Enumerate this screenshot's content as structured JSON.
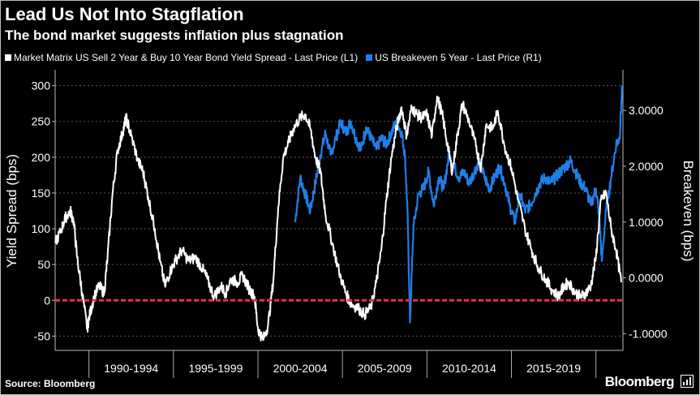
{
  "header": {
    "title": "Lead Us Not Into Stagflation",
    "subtitle": "The bond market suggests inflation plus stagnation"
  },
  "footer": {
    "source": "Source: Bloomberg",
    "brand": "Bloomberg"
  },
  "chart_data": {
    "type": "line",
    "title": "Lead Us Not Into Stagflation",
    "subtitle": "The bond market suggests inflation plus stagnation",
    "x_range": [
      1988.0,
      2021.6
    ],
    "x_category_boundaries": [
      1990,
      1995,
      2000,
      2005,
      2010,
      2015,
      2020
    ],
    "x_category_labels": [
      "1990-1994",
      "1995-1999",
      "2000-2004",
      "2005-2009",
      "2010-2014",
      "2015-2019"
    ],
    "left_axis": {
      "label": "Yield Spread (bps)",
      "range": [
        -70,
        320
      ],
      "ticks": [
        -50,
        0,
        50,
        100,
        150,
        200,
        250,
        300
      ]
    },
    "right_axis": {
      "label": "Breakeven (bps)",
      "range": [
        -1.3,
        3.7
      ],
      "ticks": [
        "-1.0000",
        "0.0000",
        "1.0000",
        "2.0000",
        "3.0000"
      ],
      "tick_values": [
        -1,
        0,
        1,
        2,
        3
      ]
    },
    "zero_line_color": "#e8304a",
    "grid": "horizontal-dashed",
    "series": [
      {
        "name": "Market Matrix US Sell 2 Year & Buy 10 Year Bond Yield Spread - Last Price (L1)",
        "axis": "left",
        "color": "#ffffff",
        "x": [
          1988.0,
          1988.3,
          1988.6,
          1988.9,
          1989.1,
          1989.3,
          1989.6,
          1989.9,
          1990.0,
          1990.3,
          1990.6,
          1990.9,
          1991.1,
          1991.4,
          1991.7,
          1992.0,
          1992.2,
          1992.5,
          1992.9,
          1993.2,
          1993.5,
          1993.9,
          1994.2,
          1994.5,
          1994.8,
          1995.1,
          1995.5,
          1995.9,
          1996.3,
          1996.7,
          1997.0,
          1997.4,
          1997.8,
          1998.1,
          1998.4,
          1998.8,
          1999.1,
          1999.5,
          1999.8,
          2000.0,
          2000.3,
          2000.6,
          2000.9,
          2001.2,
          2001.5,
          2001.8,
          2002.1,
          2002.5,
          2002.8,
          2003.1,
          2003.4,
          2003.7,
          2004.0,
          2004.4,
          2004.8,
          2005.2,
          2005.5,
          2005.9,
          2006.3,
          2006.7,
          2007.0,
          2007.3,
          2007.6,
          2007.9,
          2008.2,
          2008.5,
          2008.8,
          2009.1,
          2009.4,
          2009.7,
          2010.0,
          2010.3,
          2010.6,
          2010.9,
          2011.2,
          2011.5,
          2011.8,
          2012.1,
          2012.5,
          2012.9,
          2013.2,
          2013.5,
          2013.9,
          2014.2,
          2014.6,
          2015.0,
          2015.4,
          2015.8,
          2016.2,
          2016.6,
          2017.0,
          2017.4,
          2017.8,
          2018.1,
          2018.4,
          2018.8,
          2019.1,
          2019.4,
          2019.7,
          2020.0,
          2020.3,
          2020.6,
          2020.9,
          2021.2,
          2021.5
        ],
        "values": [
          80,
          95,
          115,
          125,
          110,
          60,
          10,
          -40,
          -25,
          5,
          20,
          10,
          60,
          150,
          210,
          235,
          255,
          230,
          195,
          180,
          145,
          100,
          55,
          20,
          40,
          55,
          70,
          55,
          60,
          45,
          30,
          5,
          20,
          10,
          30,
          25,
          35,
          15,
          5,
          -40,
          -55,
          -35,
          25,
          130,
          200,
          220,
          240,
          255,
          260,
          240,
          200,
          180,
          120,
          80,
          40,
          10,
          -5,
          -10,
          -20,
          -10,
          25,
          70,
          140,
          200,
          240,
          270,
          230,
          270,
          260,
          255,
          260,
          230,
          285,
          260,
          220,
          180,
          230,
          275,
          250,
          215,
          185,
          245,
          240,
          265,
          215,
          185,
          140,
          100,
          70,
          45,
          30,
          15,
          5,
          20,
          25,
          10,
          5,
          10,
          20,
          60,
          140,
          150,
          100,
          70,
          25
        ]
      },
      {
        "name": "US Breakeven 5 Year - Last Price (R1)",
        "axis": "right",
        "color": "#1e7fe8",
        "x": [
          2002.2,
          2002.5,
          2002.8,
          2003.1,
          2003.4,
          2003.7,
          2004.0,
          2004.3,
          2004.6,
          2004.9,
          2005.2,
          2005.5,
          2005.8,
          2006.1,
          2006.4,
          2006.7,
          2007.0,
          2007.3,
          2007.6,
          2007.9,
          2008.2,
          2008.5,
          2008.7,
          2008.85,
          2009.0,
          2009.2,
          2009.5,
          2009.8,
          2010.1,
          2010.4,
          2010.7,
          2011.0,
          2011.3,
          2011.6,
          2011.9,
          2012.2,
          2012.5,
          2012.8,
          2013.1,
          2013.4,
          2013.7,
          2014.0,
          2014.3,
          2014.6,
          2014.9,
          2015.2,
          2015.5,
          2015.8,
          2016.1,
          2016.4,
          2016.7,
          2017.0,
          2017.3,
          2017.6,
          2017.9,
          2018.2,
          2018.5,
          2018.8,
          2019.1,
          2019.4,
          2019.7,
          2020.0,
          2020.2,
          2020.35,
          2020.6,
          2020.9,
          2021.2,
          2021.4,
          2021.55
        ],
        "values": [
          1.0,
          1.8,
          1.5,
          1.2,
          1.7,
          2.2,
          2.6,
          2.2,
          2.5,
          2.8,
          2.6,
          2.8,
          2.5,
          2.3,
          2.7,
          2.5,
          2.3,
          2.5,
          2.4,
          2.6,
          2.8,
          2.6,
          2.2,
          1.2,
          -0.8,
          0.9,
          1.5,
          1.6,
          1.9,
          1.3,
          1.8,
          1.6,
          2.2,
          2.0,
          1.8,
          1.9,
          1.7,
          1.9,
          2.1,
          1.8,
          1.6,
          1.8,
          2.0,
          1.7,
          1.3,
          1.0,
          1.5,
          1.2,
          1.3,
          1.5,
          1.7,
          1.8,
          1.7,
          1.8,
          1.9,
          2.0,
          2.1,
          1.9,
          1.7,
          1.6,
          1.3,
          1.6,
          1.1,
          0.3,
          1.2,
          1.8,
          2.4,
          2.5,
          3.4
        ]
      }
    ]
  }
}
